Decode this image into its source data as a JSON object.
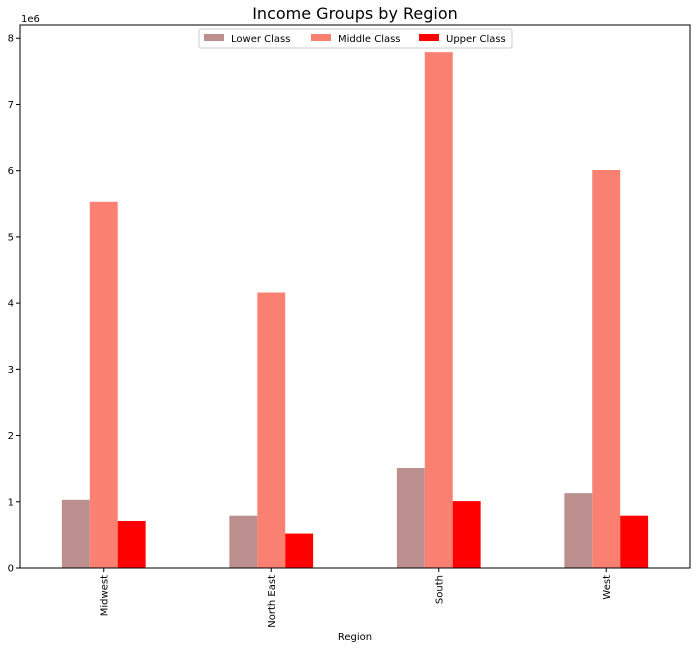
{
  "chart_data": {
    "type": "bar",
    "title": "Income Groups by Region",
    "xlabel": "Region",
    "ylabel": "",
    "y_offset_label": "1e6",
    "ylim": [
      0,
      8.2
    ],
    "yticks": [
      "0",
      "1",
      "2",
      "3",
      "4",
      "5",
      "6",
      "7",
      "8"
    ],
    "grid": false,
    "legend_position": "top-center",
    "categories": [
      "Midwest",
      "North East",
      "South",
      "West"
    ],
    "series": [
      {
        "name": "Lower Class",
        "color": "#bc8f8f",
        "values": [
          1.03,
          0.79,
          1.51,
          1.13
        ]
      },
      {
        "name": "Middle Class",
        "color": "#fa8072",
        "values": [
          5.53,
          4.16,
          7.79,
          6.01
        ]
      },
      {
        "name": "Upper Class",
        "color": "#ff0000",
        "values": [
          0.71,
          0.52,
          1.01,
          0.79
        ]
      }
    ]
  }
}
